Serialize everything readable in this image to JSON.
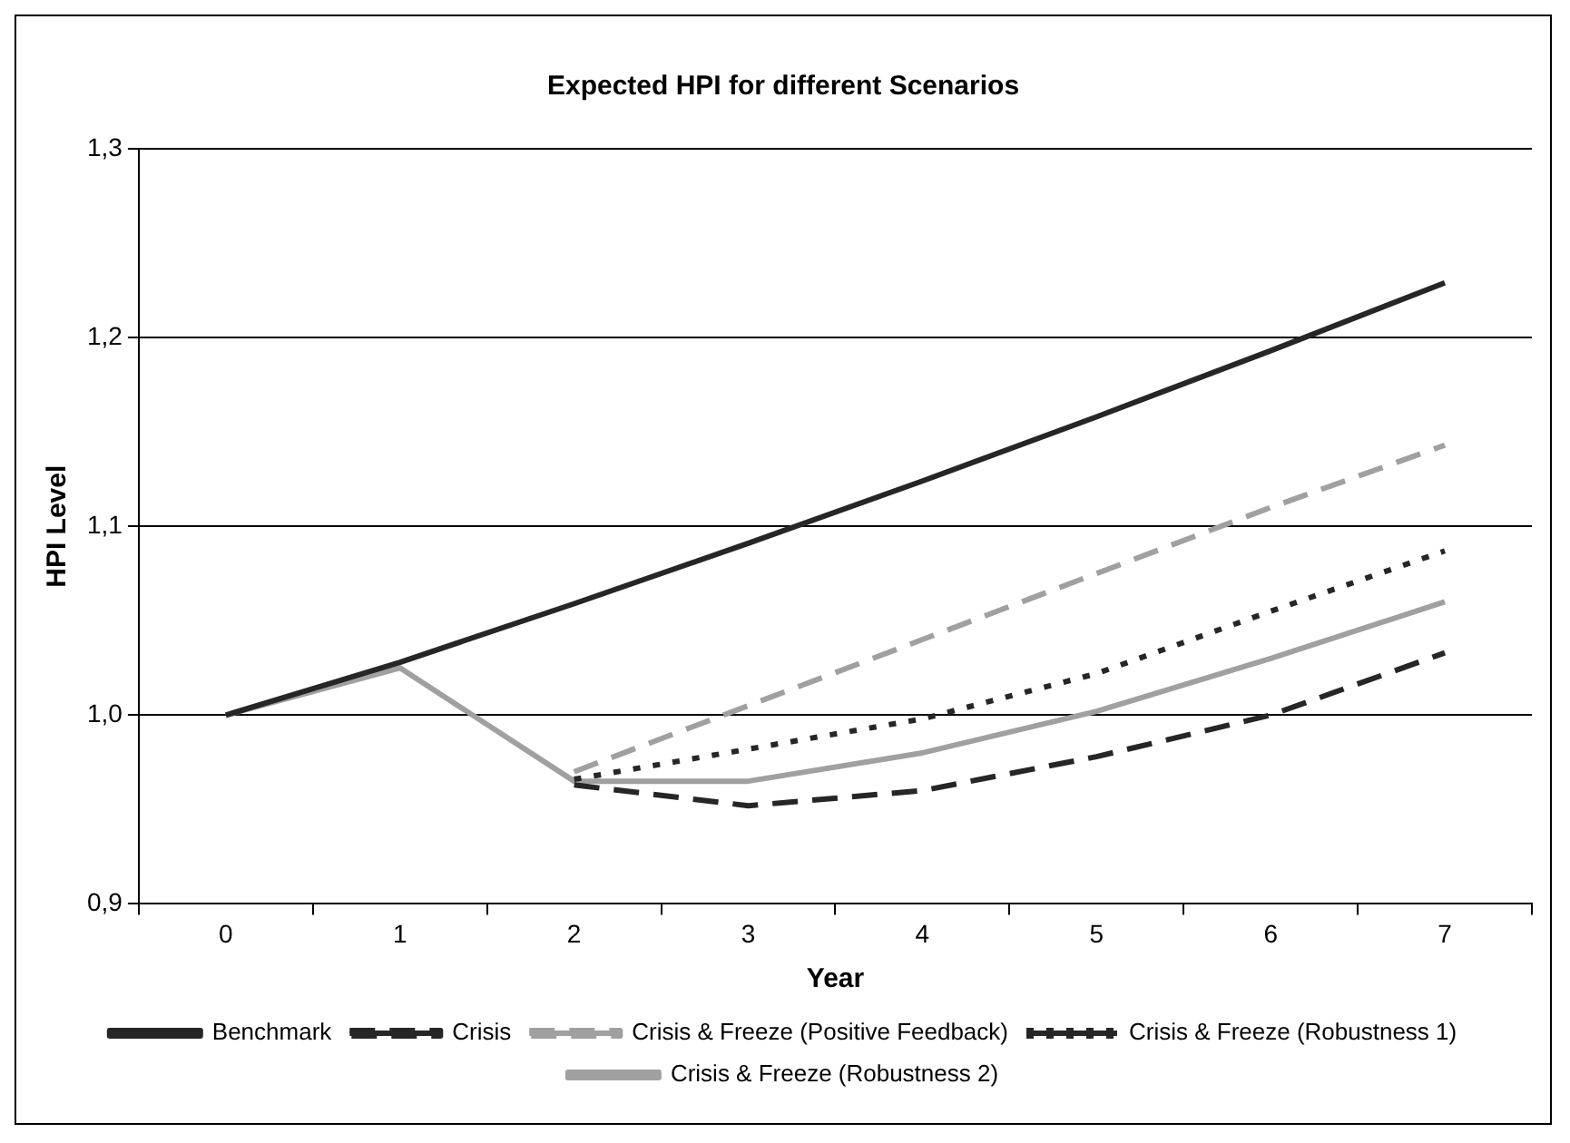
{
  "chart_data": {
    "type": "line",
    "title": "Expected HPI for different Scenarios",
    "xlabel": "Year",
    "ylabel": "HPI Level",
    "categories": [
      "0",
      "1",
      "2",
      "3",
      "4",
      "5",
      "6",
      "7"
    ],
    "series": [
      {
        "name": "Benchmark",
        "color": "#262626",
        "line_style": "solid",
        "values": [
          1.0,
          1.028,
          1.059,
          1.091,
          1.124,
          1.158,
          1.193,
          1.229
        ]
      },
      {
        "name": "Crisis",
        "color": "#262626",
        "line_style": "dashed",
        "values": [
          null,
          null,
          0.963,
          0.952,
          0.96,
          0.978,
          1.0,
          1.033
        ]
      },
      {
        "name": "Crisis & Freeze (Positive Feedback)",
        "color": "#a0a0a0",
        "line_style": "dashed",
        "values": [
          null,
          null,
          0.97,
          1.005,
          1.04,
          1.075,
          1.11,
          1.143
        ]
      },
      {
        "name": "Crisis & Freeze (Robustness 1)",
        "color": "#262626",
        "line_style": "dotted",
        "values": [
          null,
          null,
          0.966,
          0.982,
          0.998,
          1.022,
          1.055,
          1.087
        ]
      },
      {
        "name": "Crisis & Freeze (Robustness 2)",
        "color": "#a0a0a0",
        "line_style": "solid",
        "values": [
          1.0,
          1.025,
          0.965,
          0.965,
          0.98,
          1.002,
          1.03,
          1.06
        ]
      }
    ],
    "ylim": [
      0.9,
      1.3
    ],
    "yticks": [
      {
        "value": 0.9,
        "label": "0,9"
      },
      {
        "value": 1.0,
        "label": "1,0"
      },
      {
        "value": 1.1,
        "label": "1,1"
      },
      {
        "value": 1.2,
        "label": "1,2"
      },
      {
        "value": 1.3,
        "label": "1,3"
      }
    ],
    "grid": "y",
    "legend": "bottom",
    "marker": "none"
  }
}
